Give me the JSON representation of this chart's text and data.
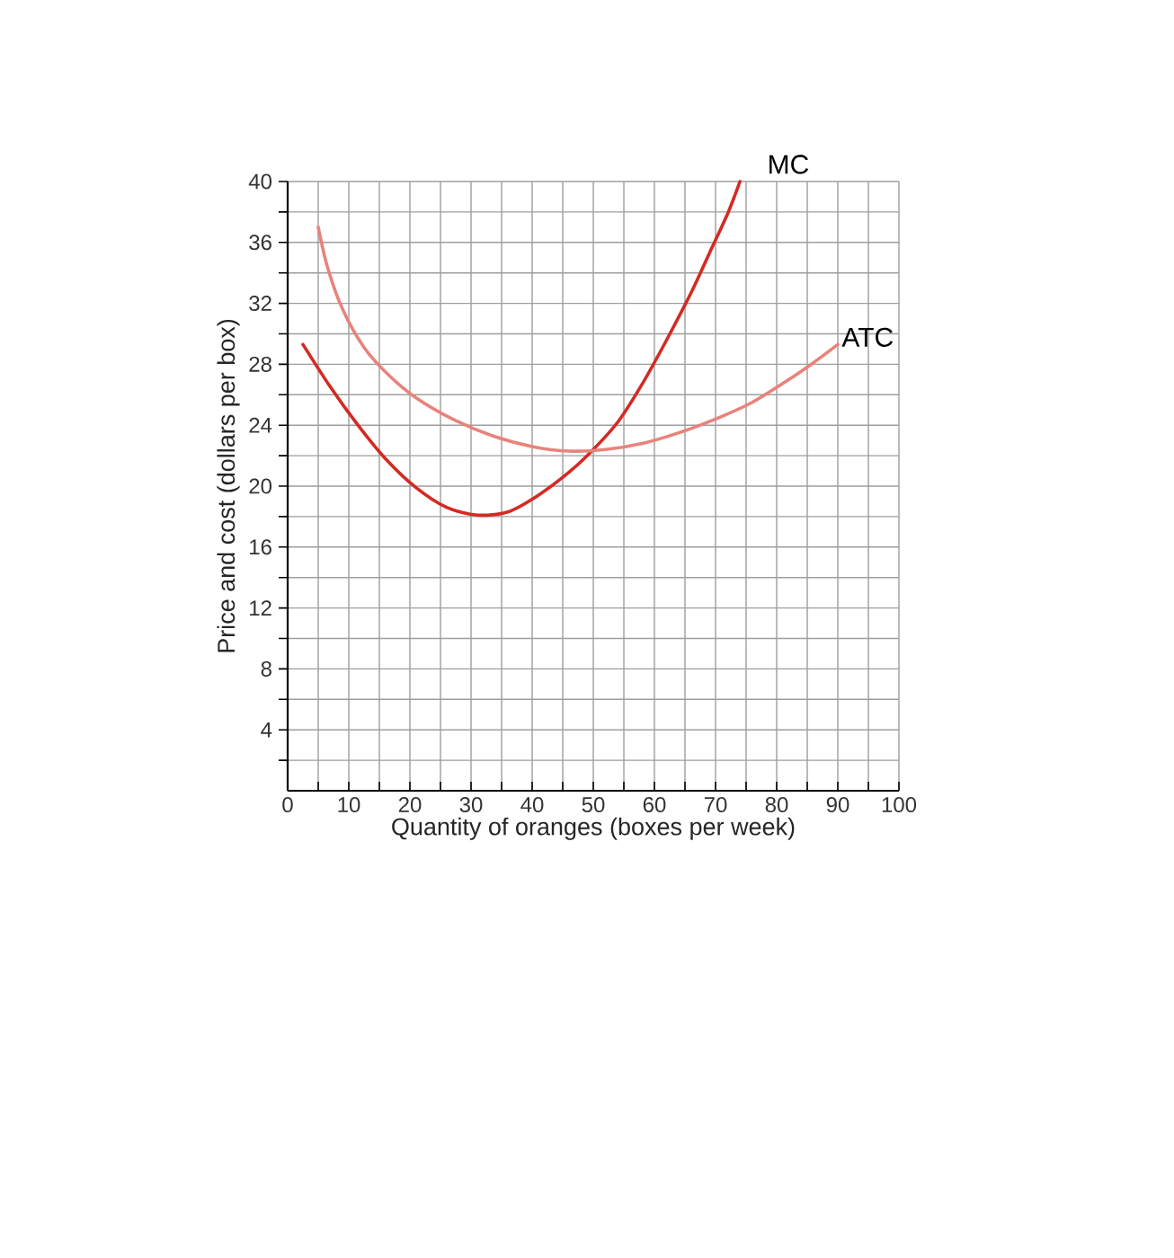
{
  "chart_data": {
    "type": "line",
    "xlabel": "Quantity of oranges (boxes per week)",
    "ylabel": "Price and cost (dollars per box)",
    "xlim": [
      0,
      100
    ],
    "ylim": [
      0,
      40
    ],
    "xticks": [
      0,
      {
        "value": 5,
        "label": null
      },
      10,
      {
        "value": 15,
        "label": null
      },
      20,
      {
        "value": 25,
        "label": null
      },
      30,
      {
        "value": 35,
        "label": null
      },
      40,
      {
        "value": 45,
        "label": null
      },
      50,
      {
        "value": 55,
        "label": null
      },
      60,
      {
        "value": 65,
        "label": null
      },
      70,
      {
        "value": 75,
        "label": null
      },
      80,
      {
        "value": 85,
        "label": null
      },
      90,
      {
        "value": 95,
        "label": null
      },
      100
    ],
    "yticks": [
      {
        "value": 2,
        "label": null
      },
      4,
      {
        "value": 6,
        "label": null
      },
      8,
      {
        "value": 10,
        "label": null
      },
      12,
      {
        "value": 14,
        "label": null
      },
      16,
      {
        "value": 18,
        "label": null
      },
      20,
      {
        "value": 22,
        "label": null
      },
      24,
      {
        "value": 26,
        "label": null
      },
      28,
      {
        "value": 30,
        "label": null
      },
      32,
      {
        "value": 34,
        "label": null
      },
      36,
      {
        "value": 38,
        "label": null
      },
      40
    ],
    "grid": true,
    "series": [
      {
        "name": "MC",
        "color": "#d42a24",
        "x": [
          2.5,
          7,
          11.5,
          16,
          21,
          26,
          31,
          36,
          41,
          46,
          50,
          54,
          58,
          62,
          66,
          69,
          72,
          74
        ],
        "values": [
          29.3,
          26.5,
          24,
          21.8,
          19.9,
          18.6,
          18.1,
          18.3,
          19.4,
          20.9,
          22.4,
          24.2,
          26.7,
          29.6,
          32.7,
          35.3,
          37.9,
          40
        ]
      },
      {
        "name": "ATC",
        "color": "#e8837b",
        "x": [
          5,
          6.5,
          9,
          12.5,
          16.5,
          21,
          27,
          33.5,
          40,
          46,
          52,
          58,
          64,
          70,
          76,
          82,
          86,
          90
        ],
        "values": [
          37,
          34.4,
          31.6,
          29.1,
          27.3,
          25.8,
          24.4,
          23.3,
          22.6,
          22.3,
          22.4,
          22.8,
          23.5,
          24.4,
          25.5,
          27,
          28.1,
          29.3
        ]
      }
    ]
  }
}
